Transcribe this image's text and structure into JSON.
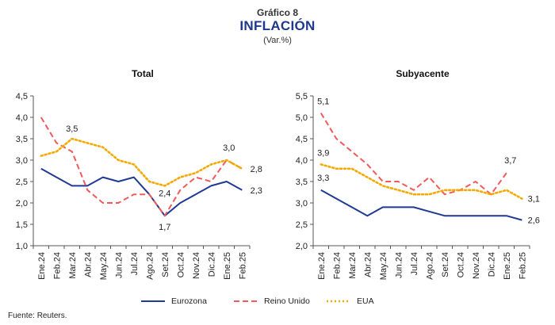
{
  "header": {
    "label": "Gráfico 8",
    "title": "INFLACIÓN",
    "subtitle": "(Var.%)"
  },
  "legend": [
    {
      "name": "Eurozona",
      "color": "#1f3a93",
      "style": "solid"
    },
    {
      "name": "Reino Unido",
      "color": "#f05a5a",
      "style": "dashed"
    },
    {
      "name": "EUA",
      "color": "#f5a800",
      "style": "dotted"
    }
  ],
  "source": "Fuente: Reuters.",
  "chart_data": [
    {
      "type": "line",
      "title": "Total",
      "categories": [
        "Ene.24",
        "Feb.24",
        "Mar.24",
        "Abr.24",
        "May.24",
        "Jun.24",
        "Jul.24",
        "Ago.24",
        "Set.24",
        "Oct.24",
        "Nov.24",
        "Dic.24",
        "Ene.25",
        "Feb.25"
      ],
      "ylim": [
        1.0,
        4.5
      ],
      "yticks": [
        "1,0",
        "1,5",
        "2,0",
        "2,5",
        "3,0",
        "3,5",
        "4,0",
        "4,5"
      ],
      "series": [
        {
          "name": "Eurozona",
          "color": "#1f3a93",
          "style": "solid",
          "values": [
            2.8,
            2.6,
            2.4,
            2.4,
            2.6,
            2.5,
            2.6,
            2.2,
            1.7,
            2.0,
            2.2,
            2.4,
            2.5,
            2.3
          ]
        },
        {
          "name": "Reino Unido",
          "color": "#f05a5a",
          "style": "dashed",
          "values": [
            4.0,
            3.4,
            3.2,
            2.3,
            2.0,
            2.0,
            2.2,
            2.2,
            1.7,
            2.3,
            2.6,
            2.5,
            3.0,
            2.8
          ]
        },
        {
          "name": "EUA",
          "color": "#f5a800",
          "style": "dotted",
          "values": [
            3.1,
            3.2,
            3.5,
            3.4,
            3.3,
            3.0,
            2.9,
            2.5,
            2.4,
            2.6,
            2.7,
            2.9,
            3.0,
            2.8
          ]
        }
      ],
      "annotations": [
        {
          "text": "3,5",
          "series": 2,
          "index": 2,
          "dx": 0,
          "dy": -9
        },
        {
          "text": "2,4",
          "series": 2,
          "index": 8,
          "dx": 0,
          "dy": 13
        },
        {
          "text": "1,7",
          "series": 0,
          "index": 8,
          "dx": 0,
          "dy": 18
        },
        {
          "text": "3,0",
          "series": 1,
          "index": 12,
          "dx": 3,
          "dy": -12
        },
        {
          "text": "2,8",
          "series": 2,
          "index": 13,
          "dx": 18,
          "dy": 4
        },
        {
          "text": "2,3",
          "series": 0,
          "index": 13,
          "dx": 18,
          "dy": 4
        }
      ]
    },
    {
      "type": "line",
      "title": "Subyacente",
      "categories": [
        "Ene.24",
        "Feb.24",
        "Mar.24",
        "Abr.24",
        "May.24",
        "Jun.24",
        "Jul.24",
        "Ago.24",
        "Set.24",
        "Oct.24",
        "Nov.24",
        "Dic.24",
        "Ene.25",
        "Feb.25"
      ],
      "ylim": [
        2.0,
        5.5
      ],
      "yticks": [
        "2,0",
        "2,5",
        "3,0",
        "3,5",
        "4,0",
        "4,5",
        "5,0",
        "5,5"
      ],
      "series": [
        {
          "name": "Eurozona",
          "color": "#1f3a93",
          "style": "solid",
          "values": [
            3.3,
            3.1,
            2.9,
            2.7,
            2.9,
            2.9,
            2.9,
            2.8,
            2.7,
            2.7,
            2.7,
            2.7,
            2.7,
            2.6
          ]
        },
        {
          "name": "Reino Unido",
          "color": "#f05a5a",
          "style": "dashed",
          "values": [
            5.1,
            4.5,
            4.2,
            3.9,
            3.5,
            3.5,
            3.3,
            3.6,
            3.2,
            3.3,
            3.5,
            3.2,
            3.7,
            null
          ]
        },
        {
          "name": "EUA",
          "color": "#f5a800",
          "style": "dotted",
          "values": [
            3.9,
            3.8,
            3.8,
            3.6,
            3.4,
            3.3,
            3.2,
            3.2,
            3.3,
            3.3,
            3.3,
            3.2,
            3.3,
            3.1
          ]
        }
      ],
      "annotations": [
        {
          "text": "5,1",
          "series": 1,
          "index": 0,
          "dx": 3,
          "dy": -11
        },
        {
          "text": "3,9",
          "series": 2,
          "index": 0,
          "dx": 3,
          "dy": -11
        },
        {
          "text": "3,3",
          "series": 0,
          "index": 0,
          "dx": 3,
          "dy": -12
        },
        {
          "text": "3,7",
          "series": 1,
          "index": 12,
          "dx": 5,
          "dy": -12
        },
        {
          "text": "3,1",
          "series": 2,
          "index": 13,
          "dx": 15,
          "dy": 4
        },
        {
          "text": "2,6",
          "series": 0,
          "index": 13,
          "dx": 15,
          "dy": 4
        }
      ]
    }
  ]
}
